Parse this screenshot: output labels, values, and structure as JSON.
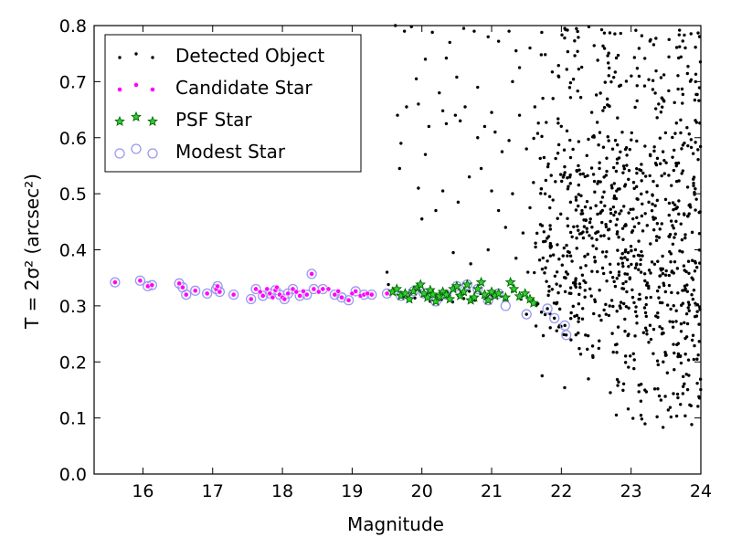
{
  "chart_data": {
    "type": "scatter",
    "xlabel": "Magnitude",
    "ylabel": "T = 2σ² (arcsec²)",
    "xlim": [
      15.3,
      24
    ],
    "ylim": [
      0.0,
      0.8
    ],
    "xticks": [
      "16",
      "17",
      "18",
      "19",
      "20",
      "21",
      "22",
      "23",
      "24"
    ],
    "yticks": [
      "0.0",
      "0.1",
      "0.2",
      "0.3",
      "0.4",
      "0.5",
      "0.6",
      "0.7",
      "0.8"
    ],
    "grid": false,
    "legend_position": "top-left",
    "colors": {
      "detected": "#000000",
      "candidate": "#ff00ff",
      "psf": "#00aa00",
      "modest": "#9999ee"
    },
    "series": [
      {
        "name": "Detected Object",
        "marker": "dot",
        "points": [
          [
            15.96,
            0.345
          ],
          [
            18.42,
            0.357
          ],
          [
            19.52,
            0.338
          ],
          [
            19.58,
            0.325
          ],
          [
            19.64,
            0.33
          ],
          [
            19.75,
            0.317
          ],
          [
            19.83,
            0.321
          ],
          [
            19.9,
            0.314
          ],
          [
            19.97,
            0.327
          ],
          [
            20.05,
            0.318
          ],
          [
            20.12,
            0.308
          ],
          [
            20.2,
            0.32
          ],
          [
            20.28,
            0.311
          ],
          [
            20.36,
            0.324
          ],
          [
            20.44,
            0.307
          ],
          [
            20.52,
            0.319
          ],
          [
            20.6,
            0.313
          ],
          [
            20.68,
            0.326
          ],
          [
            20.76,
            0.31
          ],
          [
            20.84,
            0.322
          ],
          [
            20.92,
            0.315
          ],
          [
            21.0,
            0.317
          ],
          [
            21.1,
            0.32
          ],
          [
            21.2,
            0.311
          ],
          [
            21.3,
            0.326
          ],
          [
            21.42,
            0.312
          ],
          [
            21.5,
            0.285
          ],
          [
            21.8,
            0.295
          ],
          [
            21.9,
            0.278
          ],
          [
            22.05,
            0.265
          ],
          [
            22.07,
            0.248
          ],
          [
            19.62,
            0.8
          ],
          [
            19.75,
            0.79
          ],
          [
            19.85,
            0.798
          ],
          [
            20.15,
            0.788
          ],
          [
            20.05,
            0.74
          ],
          [
            19.92,
            0.705
          ],
          [
            20.35,
            0.742
          ],
          [
            20.4,
            0.77
          ],
          [
            20.6,
            0.795
          ],
          [
            20.75,
            0.79
          ],
          [
            20.95,
            0.78
          ],
          [
            21.1,
            0.772
          ],
          [
            21.25,
            0.79
          ],
          [
            21.35,
            0.755
          ],
          [
            21.4,
            0.725
          ],
          [
            21.55,
            0.76
          ],
          [
            21.3,
            0.7
          ],
          [
            20.8,
            0.69
          ],
          [
            20.5,
            0.708
          ],
          [
            20.25,
            0.68
          ],
          [
            19.95,
            0.66
          ],
          [
            19.78,
            0.655
          ],
          [
            20.1,
            0.62
          ],
          [
            20.3,
            0.648
          ],
          [
            20.35,
            0.625
          ],
          [
            20.48,
            0.64
          ],
          [
            20.55,
            0.63
          ],
          [
            20.62,
            0.655
          ],
          [
            20.8,
            0.6
          ],
          [
            20.9,
            0.62
          ],
          [
            21.0,
            0.645
          ],
          [
            21.05,
            0.61
          ],
          [
            21.15,
            0.575
          ],
          [
            21.25,
            0.595
          ],
          [
            21.4,
            0.64
          ],
          [
            21.5,
            0.58
          ],
          [
            19.7,
            0.59
          ],
          [
            19.68,
            0.545
          ],
          [
            19.95,
            0.51
          ],
          [
            20.2,
            0.47
          ],
          [
            20.3,
            0.505
          ],
          [
            20.52,
            0.485
          ],
          [
            20.68,
            0.53
          ],
          [
            20.85,
            0.545
          ],
          [
            21.0,
            0.505
          ],
          [
            21.1,
            0.47
          ],
          [
            21.2,
            0.44
          ],
          [
            21.3,
            0.5
          ],
          [
            21.45,
            0.43
          ],
          [
            21.55,
            0.475
          ],
          [
            21.6,
            0.52
          ],
          [
            21.63,
            0.405
          ],
          [
            21.7,
            0.445
          ],
          [
            20.0,
            0.455
          ],
          [
            20.45,
            0.395
          ],
          [
            20.7,
            0.375
          ],
          [
            20.95,
            0.4
          ],
          [
            21.35,
            0.385
          ],
          [
            21.52,
            0.36
          ],
          [
            21.8,
            0.38
          ],
          [
            19.5,
            0.36
          ],
          [
            20.05,
            0.57
          ],
          [
            21.62,
            0.655
          ],
          [
            19.65,
            0.64
          ]
        ]
      },
      {
        "name": "Candidate Star",
        "marker": "small-circle",
        "points": [
          [
            15.6,
            0.342
          ],
          [
            15.96,
            0.345
          ],
          [
            16.07,
            0.335
          ],
          [
            16.13,
            0.337
          ],
          [
            16.52,
            0.34
          ],
          [
            16.57,
            0.333
          ],
          [
            16.62,
            0.32
          ],
          [
            16.75,
            0.327
          ],
          [
            16.92,
            0.322
          ],
          [
            17.05,
            0.33
          ],
          [
            17.07,
            0.335
          ],
          [
            17.1,
            0.325
          ],
          [
            17.3,
            0.32
          ],
          [
            17.55,
            0.312
          ],
          [
            17.62,
            0.33
          ],
          [
            17.68,
            0.325
          ],
          [
            17.72,
            0.318
          ],
          [
            17.78,
            0.33
          ],
          [
            17.82,
            0.322
          ],
          [
            17.86,
            0.315
          ],
          [
            17.9,
            0.328
          ],
          [
            17.92,
            0.333
          ],
          [
            17.96,
            0.32
          ],
          [
            18.0,
            0.315
          ],
          [
            18.03,
            0.312
          ],
          [
            18.08,
            0.322
          ],
          [
            18.15,
            0.33
          ],
          [
            18.2,
            0.325
          ],
          [
            18.25,
            0.318
          ],
          [
            18.3,
            0.326
          ],
          [
            18.35,
            0.32
          ],
          [
            18.42,
            0.357
          ],
          [
            18.45,
            0.33
          ],
          [
            18.52,
            0.325
          ],
          [
            18.58,
            0.33
          ],
          [
            18.66,
            0.33
          ],
          [
            18.75,
            0.32
          ],
          [
            18.8,
            0.326
          ],
          [
            18.85,
            0.315
          ],
          [
            18.95,
            0.31
          ],
          [
            19.0,
            0.322
          ],
          [
            19.05,
            0.326
          ],
          [
            19.12,
            0.318
          ],
          [
            19.17,
            0.32
          ],
          [
            19.22,
            0.322
          ],
          [
            19.28,
            0.32
          ],
          [
            19.5,
            0.322
          ]
        ]
      },
      {
        "name": "PSF Star",
        "marker": "star",
        "points": [
          [
            19.58,
            0.325
          ],
          [
            19.64,
            0.33
          ],
          [
            19.7,
            0.318
          ],
          [
            19.76,
            0.322
          ],
          [
            19.82,
            0.312
          ],
          [
            19.88,
            0.326
          ],
          [
            19.94,
            0.333
          ],
          [
            19.98,
            0.338
          ],
          [
            20.03,
            0.322
          ],
          [
            20.08,
            0.315
          ],
          [
            20.12,
            0.328
          ],
          [
            20.16,
            0.32
          ],
          [
            20.2,
            0.308
          ],
          [
            20.25,
            0.317
          ],
          [
            20.3,
            0.325
          ],
          [
            20.35,
            0.32
          ],
          [
            20.4,
            0.312
          ],
          [
            20.45,
            0.33
          ],
          [
            20.5,
            0.335
          ],
          [
            20.55,
            0.318
          ],
          [
            20.6,
            0.325
          ],
          [
            20.65,
            0.338
          ],
          [
            20.7,
            0.31
          ],
          [
            20.75,
            0.315
          ],
          [
            20.8,
            0.33
          ],
          [
            20.85,
            0.342
          ],
          [
            20.9,
            0.32
          ],
          [
            20.95,
            0.31
          ],
          [
            21.0,
            0.325
          ],
          [
            21.05,
            0.318
          ],
          [
            21.1,
            0.322
          ],
          [
            21.2,
            0.315
          ],
          [
            21.27,
            0.342
          ],
          [
            21.32,
            0.33
          ],
          [
            21.4,
            0.317
          ],
          [
            21.48,
            0.322
          ],
          [
            21.55,
            0.312
          ],
          [
            21.6,
            0.305
          ]
        ]
      },
      {
        "name": "Modest Star",
        "marker": "open-circle",
        "points": [
          [
            15.6,
            0.342
          ],
          [
            15.96,
            0.345
          ],
          [
            16.07,
            0.335
          ],
          [
            16.13,
            0.337
          ],
          [
            16.52,
            0.34
          ],
          [
            16.57,
            0.333
          ],
          [
            16.62,
            0.32
          ],
          [
            16.75,
            0.327
          ],
          [
            16.92,
            0.322
          ],
          [
            17.05,
            0.33
          ],
          [
            17.07,
            0.335
          ],
          [
            17.1,
            0.325
          ],
          [
            17.3,
            0.32
          ],
          [
            17.55,
            0.312
          ],
          [
            17.62,
            0.33
          ],
          [
            17.72,
            0.318
          ],
          [
            17.82,
            0.322
          ],
          [
            17.9,
            0.328
          ],
          [
            17.96,
            0.32
          ],
          [
            18.03,
            0.312
          ],
          [
            18.08,
            0.322
          ],
          [
            18.15,
            0.33
          ],
          [
            18.25,
            0.318
          ],
          [
            18.35,
            0.32
          ],
          [
            18.42,
            0.357
          ],
          [
            18.45,
            0.33
          ],
          [
            18.58,
            0.33
          ],
          [
            18.75,
            0.32
          ],
          [
            18.85,
            0.315
          ],
          [
            18.95,
            0.31
          ],
          [
            19.05,
            0.326
          ],
          [
            19.17,
            0.32
          ],
          [
            19.28,
            0.32
          ],
          [
            19.5,
            0.322
          ],
          [
            19.7,
            0.318
          ],
          [
            19.88,
            0.326
          ],
          [
            20.03,
            0.322
          ],
          [
            20.2,
            0.308
          ],
          [
            20.35,
            0.32
          ],
          [
            20.5,
            0.335
          ],
          [
            20.65,
            0.338
          ],
          [
            20.8,
            0.33
          ],
          [
            20.95,
            0.31
          ],
          [
            21.1,
            0.322
          ],
          [
            21.2,
            0.3
          ],
          [
            21.5,
            0.285
          ],
          [
            21.8,
            0.295
          ],
          [
            21.9,
            0.278
          ],
          [
            22.05,
            0.265
          ],
          [
            22.07,
            0.248
          ]
        ]
      }
    ]
  }
}
